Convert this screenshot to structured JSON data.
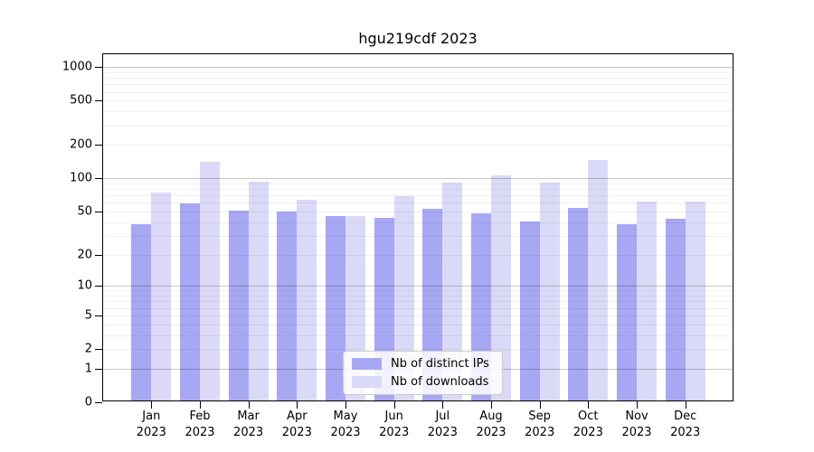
{
  "title": "hgu219cdf 2023",
  "chart_data": {
    "type": "bar",
    "title": "hgu219cdf 2023",
    "categories": [
      "Jan 2023",
      "Feb 2023",
      "Mar 2023",
      "Apr 2023",
      "May 2023",
      "Jun 2023",
      "Jul 2023",
      "Aug 2023",
      "Sep 2023",
      "Oct 2023",
      "Nov 2023",
      "Dec 2023"
    ],
    "series": [
      {
        "name": "Nb of distinct IPs",
        "color": "#a7a7f3",
        "values": [
          37,
          57,
          49,
          48,
          44,
          42,
          51,
          46,
          39,
          52,
          37,
          41
        ]
      },
      {
        "name": "Nb of downloads",
        "color": "#dadaf8",
        "values": [
          72,
          137,
          90,
          62,
          44,
          67,
          88,
          102,
          88,
          142,
          59,
          59
        ]
      }
    ],
    "xlabel": "",
    "ylabel": "",
    "y_axis": {
      "scale": "log1p",
      "ticks": [
        1000,
        500,
        200,
        100,
        50,
        20,
        10,
        5,
        2,
        1,
        0
      ],
      "max": 1300
    },
    "grid": true,
    "legend_position": "bottom-center"
  },
  "colors": {
    "distinct_ips_bar": "#a7a7f3",
    "downloads_bar": "#dadaf8",
    "major_gridline": "#c6c6c6",
    "minor_gridline": "#f0f0f0",
    "axis": "#000000",
    "legend_border": "#cccccc"
  }
}
